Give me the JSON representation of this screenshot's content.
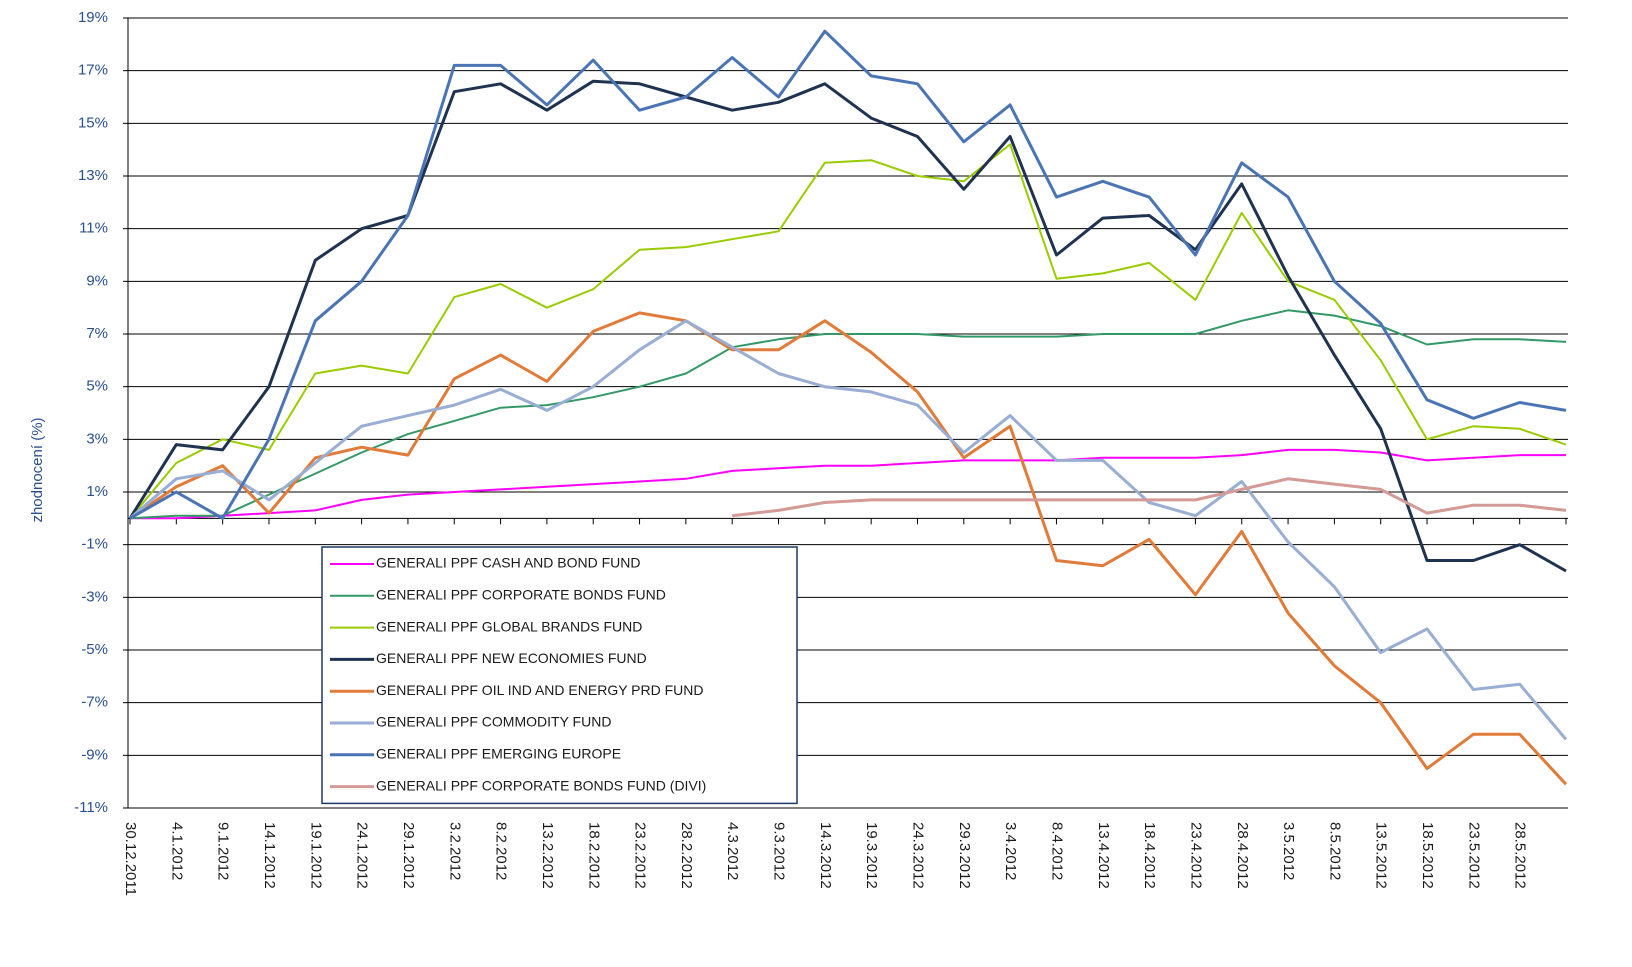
{
  "chart_data": {
    "type": "line",
    "y_label": "zhodnocení (%)",
    "categories": [
      "30.12.2011",
      "4.1.2012",
      "9.1.2012",
      "14.1.2012",
      "19.1.2012",
      "24.1.2012",
      "29.1.2012",
      "3.2.2012",
      "8.2.2012",
      "13.2.2012",
      "18.2.2012",
      "23.2.2012",
      "28.2.2012",
      "4.3.2012",
      "9.3.2012",
      "14.3.2012",
      "19.3.2012",
      "24.3.2012",
      "29.3.2012",
      "3.4.2012",
      "8.4.2012",
      "13.4.2012",
      "18.4.2012",
      "23.4.2012",
      "28.4.2012",
      "3.5.2012",
      "8.5.2012",
      "13.5.2012",
      "18.5.2012",
      "23.5.2012",
      "28.5.2012",
      null
    ],
    "ylim": [
      -11,
      19
    ],
    "yticks": [
      {
        "value": -11,
        "label": "-11%"
      },
      {
        "value": -9,
        "label": "-9%"
      },
      {
        "value": -7,
        "label": "-7%"
      },
      {
        "value": -5,
        "label": "-5%"
      },
      {
        "value": -3,
        "label": "-3%"
      },
      {
        "value": -1,
        "label": "-1%"
      },
      {
        "value": 1,
        "label": "1%"
      },
      {
        "value": 3,
        "label": "3%"
      },
      {
        "value": 5,
        "label": "5%"
      },
      {
        "value": 7,
        "label": "7%"
      },
      {
        "value": 9,
        "label": "9%"
      },
      {
        "value": 11,
        "label": "11%"
      },
      {
        "value": 13,
        "label": "13%"
      },
      {
        "value": 15,
        "label": "15%"
      },
      {
        "value": 17,
        "label": "17%"
      },
      {
        "value": 19,
        "label": "19%"
      }
    ],
    "grid": true,
    "series": [
      {
        "name": "GENERALI PPF CASH AND BOND FUND",
        "color": "#ff00ff",
        "width": 2,
        "values": [
          0,
          0,
          0.1,
          0.2,
          0.3,
          0.7,
          0.9,
          1.0,
          1.1,
          1.2,
          1.3,
          1.4,
          1.5,
          1.8,
          1.9,
          2.0,
          2.0,
          2.1,
          2.2,
          2.2,
          2.2,
          2.3,
          2.3,
          2.3,
          2.4,
          2.6,
          2.6,
          2.5,
          2.2,
          2.3,
          2.4,
          2.4
        ]
      },
      {
        "name": "GENERALI PPF CORPORATE BONDS FUND",
        "color": "#339966",
        "width": 2,
        "values": [
          0,
          0.1,
          0.1,
          0.9,
          1.7,
          2.5,
          3.2,
          3.7,
          4.2,
          4.3,
          4.6,
          5.0,
          5.5,
          6.5,
          6.8,
          7.0,
          7.0,
          7.0,
          6.9,
          6.9,
          6.9,
          7.0,
          7.0,
          7.0,
          7.5,
          7.9,
          7.7,
          7.3,
          6.6,
          6.8,
          6.8,
          6.7
        ]
      },
      {
        "name": "GENERALI PPF GLOBAL BRANDS FUND",
        "color": "#99cc00",
        "width": 2,
        "values": [
          0,
          2.1,
          3.0,
          2.6,
          5.5,
          5.8,
          5.5,
          8.4,
          8.9,
          8.0,
          8.7,
          10.2,
          10.3,
          10.6,
          10.9,
          13.5,
          13.6,
          13.0,
          12.8,
          14.2,
          9.1,
          9.3,
          9.7,
          8.3,
          11.6,
          9.0,
          8.3,
          6.0,
          3.0,
          3.5,
          3.4,
          2.8
        ]
      },
      {
        "name": "GENERALI PPF NEW ECONOMIES FUND",
        "color": "#1f3350",
        "width": 3,
        "values": [
          0,
          2.8,
          2.6,
          5.0,
          9.8,
          11.0,
          11.5,
          16.2,
          16.5,
          15.5,
          16.6,
          16.5,
          16.0,
          15.5,
          15.8,
          16.5,
          15.2,
          14.5,
          12.5,
          14.5,
          10.0,
          11.4,
          11.5,
          10.2,
          12.7,
          9.2,
          6.2,
          3.4,
          -1.6,
          -1.6,
          -1.0,
          -2.0
        ]
      },
      {
        "name": "GENERALI PPF OIL IND AND ENERGY PRD FUND",
        "color": "#e07b39",
        "width": 3,
        "values": [
          0,
          1.2,
          2.0,
          0.2,
          2.3,
          2.7,
          2.4,
          5.3,
          6.2,
          5.2,
          7.1,
          7.8,
          7.5,
          6.4,
          6.4,
          7.5,
          6.3,
          4.8,
          2.3,
          3.5,
          -1.6,
          -1.8,
          -0.8,
          -2.9,
          -0.5,
          -3.6,
          -5.6,
          -7.0,
          -9.5,
          -8.2,
          -8.2,
          -10.1
        ]
      },
      {
        "name": "GENERALI PPF COMMODITY FUND",
        "color": "#99aed4",
        "width": 3,
        "values": [
          0,
          1.5,
          1.8,
          0.7,
          2.1,
          3.5,
          3.9,
          4.3,
          4.9,
          4.1,
          5.0,
          6.4,
          7.5,
          6.5,
          5.5,
          5.0,
          4.8,
          4.3,
          2.5,
          3.9,
          2.2,
          2.2,
          0.6,
          0.1,
          1.4,
          -0.9,
          -2.6,
          -5.1,
          -4.2,
          -6.5,
          -6.3,
          -8.4
        ]
      },
      {
        "name": "GENERALI PPF EMERGING EUROPE",
        "color": "#4a74b4",
        "width": 3,
        "values": [
          0,
          1.0,
          0.0,
          3.0,
          7.5,
          9.0,
          11.5,
          17.2,
          17.2,
          15.7,
          17.4,
          15.5,
          16.0,
          17.5,
          16.0,
          18.5,
          16.8,
          16.5,
          14.3,
          15.7,
          12.2,
          12.8,
          12.2,
          10.0,
          13.5,
          12.2,
          9.0,
          7.4,
          4.5,
          3.8,
          4.4,
          4.1
        ]
      },
      {
        "name": "GENERALI PPF CORPORATE BONDS FUND (DIVI)",
        "color": "#d39a96",
        "width": 3,
        "values": [
          null,
          null,
          null,
          null,
          null,
          null,
          null,
          null,
          null,
          null,
          null,
          null,
          null,
          0.1,
          0.3,
          0.6,
          0.7,
          0.7,
          0.7,
          0.7,
          0.7,
          0.7,
          0.7,
          0.7,
          1.1,
          1.5,
          1.3,
          1.1,
          0.2,
          0.5,
          0.5,
          0.3
        ]
      }
    ]
  }
}
